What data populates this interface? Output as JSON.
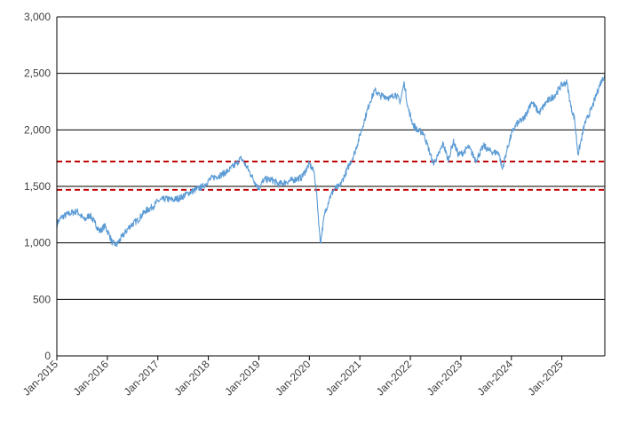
{
  "chart_data": {
    "type": "line",
    "title": "",
    "xlabel": "",
    "ylabel": "",
    "ylim": [
      0,
      3000
    ],
    "y_ticks": [
      "0",
      "500",
      "1,000",
      "1,500",
      "2,000",
      "2,500",
      "3,000"
    ],
    "x_ticks": [
      "Jan-2015",
      "Jan-2016",
      "Jan-2017",
      "Jan-2018",
      "Jan-2019",
      "Jan-2020",
      "Jan-2021",
      "Jan-2022",
      "Jan-2023",
      "Jan-2024",
      "Jan-2025"
    ],
    "xlim": [
      2015.0,
      2025.85
    ],
    "grid": true,
    "legend": "none",
    "series": [
      {
        "color": "#5b9bd5",
        "x": [
          2015.0,
          2015.1,
          2015.25,
          2015.4,
          2015.55,
          2015.65,
          2015.75,
          2015.85,
          2015.95,
          2016.03,
          2016.1,
          2016.18,
          2016.3,
          2016.45,
          2016.6,
          2016.75,
          2016.9,
          2017.0,
          2017.15,
          2017.3,
          2017.45,
          2017.6,
          2017.75,
          2017.9,
          2018.0,
          2018.1,
          2018.25,
          2018.4,
          2018.55,
          2018.65,
          2018.75,
          2018.85,
          2018.92,
          2019.0,
          2019.1,
          2019.25,
          2019.4,
          2019.55,
          2019.7,
          2019.85,
          2020.0,
          2020.1,
          2020.15,
          2020.2,
          2020.22,
          2020.3,
          2020.4,
          2020.5,
          2020.6,
          2020.7,
          2020.8,
          2020.9,
          2021.0,
          2021.1,
          2021.2,
          2021.3,
          2021.4,
          2021.5,
          2021.6,
          2021.7,
          2021.8,
          2021.88,
          2021.95,
          2022.05,
          2022.15,
          2022.25,
          2022.35,
          2022.45,
          2022.55,
          2022.65,
          2022.75,
          2022.85,
          2022.95,
          2023.05,
          2023.15,
          2023.3,
          2023.45,
          2023.55,
          2023.65,
          2023.75,
          2023.82,
          2023.9,
          2024.0,
          2024.1,
          2024.25,
          2024.4,
          2024.55,
          2024.7,
          2024.85,
          2025.0,
          2025.1,
          2025.18,
          2025.25,
          2025.32,
          2025.45,
          2025.6,
          2025.75,
          2025.85
        ],
        "y": [
          1170,
          1230,
          1260,
          1280,
          1200,
          1250,
          1180,
          1100,
          1150,
          1080,
          1000,
          980,
          1060,
          1150,
          1200,
          1280,
          1320,
          1370,
          1390,
          1380,
          1400,
          1440,
          1470,
          1500,
          1550,
          1580,
          1600,
          1640,
          1700,
          1750,
          1680,
          1600,
          1540,
          1480,
          1560,
          1560,
          1520,
          1540,
          1560,
          1580,
          1700,
          1620,
          1400,
          1100,
          1000,
          1250,
          1400,
          1480,
          1500,
          1600,
          1700,
          1800,
          1950,
          2100,
          2250,
          2350,
          2300,
          2300,
          2280,
          2320,
          2250,
          2420,
          2200,
          2050,
          1990,
          1980,
          1850,
          1700,
          1770,
          1880,
          1730,
          1900,
          1780,
          1800,
          1850,
          1730,
          1860,
          1820,
          1800,
          1800,
          1650,
          1800,
          1960,
          2050,
          2100,
          2250,
          2150,
          2250,
          2300,
          2400,
          2420,
          2200,
          2100,
          1780,
          2050,
          2200,
          2400,
          2490
        ]
      }
    ],
    "reference_lines": [
      {
        "y": 1720,
        "color": "#c00000"
      },
      {
        "y": 1470,
        "color": "#c00000"
      }
    ]
  }
}
